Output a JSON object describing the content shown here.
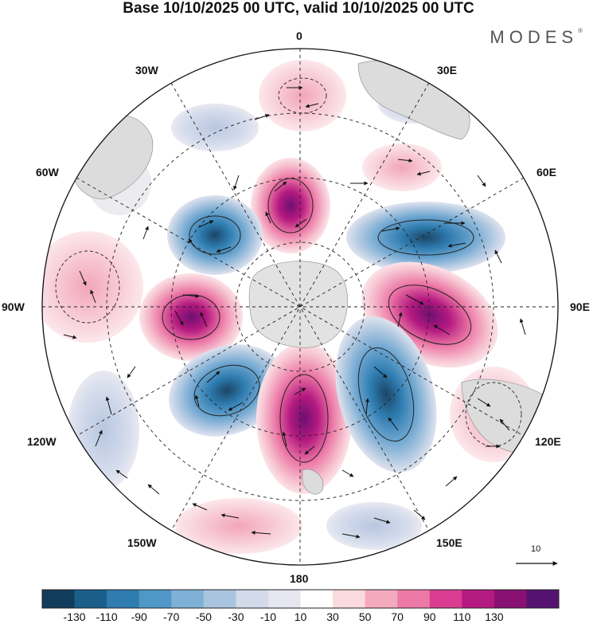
{
  "title": "Base 10/10/2025 00 UTC, valid 10/10/2025 00 UTC",
  "brand": "MODES",
  "brand_mark": "®",
  "longitude_labels": {
    "n0": "0",
    "e30": "30E",
    "e60": "60E",
    "e90": "90E",
    "e120": "120E",
    "e150": "150E",
    "s180": "180",
    "w150": "150W",
    "w120": "120W",
    "w90": "90W",
    "w60": "60W",
    "w30": "30W"
  },
  "vector_scale_label": "10",
  "colorbar": {
    "ticks": [
      "-130",
      "-110",
      "-90",
      "-70",
      "-50",
      "-30",
      "-10",
      "10",
      "30",
      "50",
      "70",
      "90",
      "110",
      "130"
    ],
    "colors": [
      "#123c5c",
      "#1a5f8a",
      "#2e7cb0",
      "#4f97c6",
      "#7fb1d6",
      "#a9c4df",
      "#d3daea",
      "#e6e6f0",
      "#ffffff",
      "#fadadd",
      "#f4aabd",
      "#ec79a6",
      "#d93d91",
      "#b51a80",
      "#881173",
      "#561270"
    ]
  }
}
